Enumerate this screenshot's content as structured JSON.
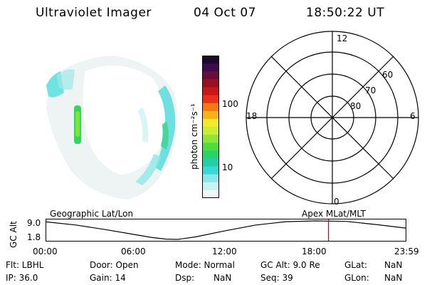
{
  "header": {
    "title": "Ultraviolet Imager",
    "date": "04 Oct 07",
    "time": "18:50:22 UT"
  },
  "colorbar": {
    "label": "photon cm⁻²s⁻¹",
    "ticks": [
      "100",
      "10"
    ],
    "colors": [
      "#1a0b2e",
      "#3b0d4a",
      "#6a0c3a",
      "#9a1020",
      "#c8161a",
      "#e8301a",
      "#f27a12",
      "#f7b316",
      "#f3ea2a",
      "#c9ee34",
      "#8ee63a",
      "#4fdc3f",
      "#27d36a",
      "#23cfa6",
      "#37d8d8",
      "#8ae7e7",
      "#c9f2f2",
      "#eef7f7"
    ]
  },
  "polar": {
    "labels": {
      "top": "12",
      "bottom": "0",
      "left": "18",
      "right": "6"
    },
    "rings": [
      "60",
      "70",
      "80"
    ]
  },
  "timeline": {
    "left_label": "Geographic Lat/Lon",
    "right_label": "Apex MLat/MLT",
    "y_axis_label": "GC Alt",
    "y_ticks": [
      "9.0",
      "1.8"
    ],
    "x_ticks": [
      "00:00",
      "06:00",
      "12:00",
      "18:00",
      "23:59"
    ],
    "marker_color": "#d40000"
  },
  "chart_data": {
    "type": "line",
    "title": "",
    "xlabel": "",
    "ylabel": "GC Alt",
    "x_ticks": [
      "00:00",
      "06:00",
      "12:00",
      "18:00",
      "23:59"
    ],
    "ylim": [
      1.8,
      9.0
    ],
    "series": [
      {
        "x": [
          0,
          2,
          4,
          6,
          7,
          8,
          8.8,
          10,
          12,
          14,
          16,
          18,
          20,
          22,
          23.98
        ],
        "y": [
          8.6,
          7.4,
          5.6,
          3.6,
          2.6,
          1.9,
          1.8,
          2.8,
          5.2,
          7.4,
          8.7,
          9.0,
          8.8,
          7.6,
          6.2
        ]
      }
    ],
    "marker_time": "18:50"
  },
  "info": {
    "row1": {
      "flt": "Flt: LBHL",
      "door": "Door: Open",
      "mode": "Mode: Normal",
      "gcalt": "GC Alt: 9.0 Re",
      "glat_label": "GLat:",
      "glat_val": "NaN"
    },
    "row2": {
      "ip": "IP: 36.0",
      "gain": "Gain: 14",
      "dsp_label": "Dsp:",
      "dsp_val": "NaN",
      "seq": "Seq: 39",
      "glon_label": "GLon:",
      "glon_val": "NaN"
    }
  }
}
